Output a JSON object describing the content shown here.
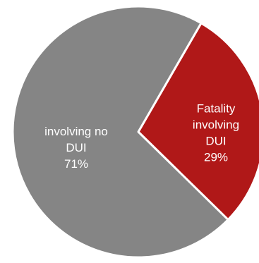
{
  "chart_data": {
    "type": "pie",
    "title": "",
    "legend": "none",
    "slices": [
      {
        "label_lines": [
          "Fatality",
          "involving",
          "DUI"
        ],
        "percent_label": "29%",
        "value": 29,
        "color": "#b01818"
      },
      {
        "label_lines": [
          "involving no",
          "DUI"
        ],
        "percent_label": "71%",
        "value": 71,
        "color": "#858585"
      }
    ]
  }
}
